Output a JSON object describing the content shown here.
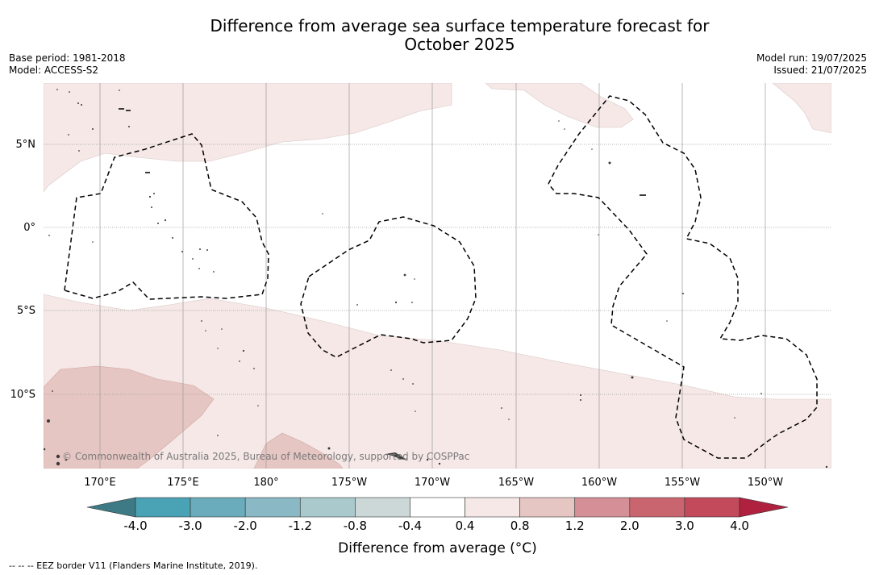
{
  "title": {
    "line1": "Difference from average sea surface temperature forecast for",
    "line2": "October 2025"
  },
  "meta_left": {
    "base_period": "Base period: 1981-2018",
    "model": "Model: ACCESS-S2"
  },
  "meta_right": {
    "model_run": "Model run: 19/07/2025",
    "issued": "Issued: 21/07/2025"
  },
  "map": {
    "lat_labels": [
      "5°N",
      "0°",
      "5°S",
      "10°S"
    ],
    "lon_labels": [
      "170°E",
      "175°E",
      "180°",
      "175°W",
      "170°W",
      "165°W",
      "160°W",
      "155°W",
      "150°W"
    ],
    "credit": "© Commonwealth of Australia 2025, Bureau of Meteorology, supported by COSPPac",
    "colors": {
      "ocean_neutral": "#ffffff",
      "anomaly_0_4_0_8": "#f5e8e6",
      "anomaly_0_8_1_2": "#e6c6c2",
      "land": "#3a3a3a",
      "gridline": "#9a9a9a",
      "eez_border": "#000000"
    }
  },
  "colorbar": {
    "title": "Difference from average (°C)",
    "ticks": [
      "-4.0",
      "-3.0",
      "-2.0",
      "-1.2",
      "-0.8",
      "-0.4",
      "0.4",
      "0.8",
      "1.2",
      "2.0",
      "3.0",
      "4.0"
    ],
    "colors": [
      "#3d7a85",
      "#4aa3b4",
      "#6aacbb",
      "#8ab8c4",
      "#a9c9cd",
      "#ccd8d8",
      "#ffffff",
      "#f5e8e6",
      "#e6c6c2",
      "#d58f96",
      "#c9656f",
      "#c24a5b",
      "#b0203f"
    ]
  },
  "footnote": "-- -- -- EEZ border V11 (Flanders Marine Institute, 2019)."
}
